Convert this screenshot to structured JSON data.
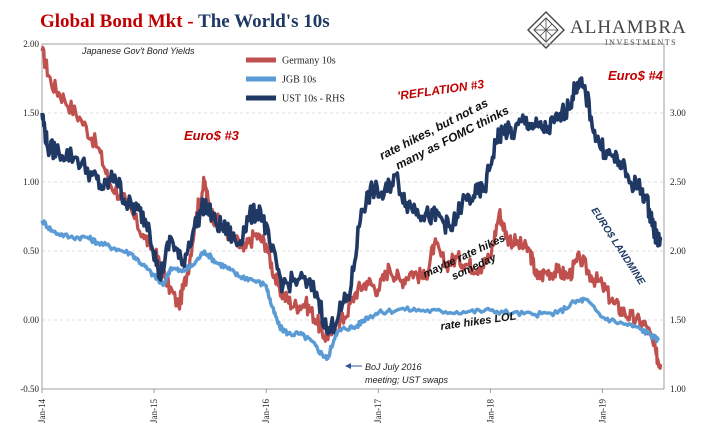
{
  "header": {
    "title_main": "Global Bond Mkt",
    "title_sep": " - ",
    "title_sub": "The World's 10s",
    "subtitle": "Japanese Gov't Bond Yields",
    "brand_name": "ALHAMBRA",
    "brand_sub": "INVESTMENTS"
  },
  "colors": {
    "germany": "#c0504d",
    "jgb": "#5b9bd5",
    "ust": "#1f3864",
    "title_red": "#c00000",
    "title_navy": "#1f3864",
    "annot_red": "#c00000",
    "annot_black": "#111111",
    "annot_navy": "#1f3864",
    "grid": "#bbbbbb"
  },
  "annotations": {
    "euro3": "Euro$ #3",
    "euro4": "Euro$ #4",
    "reflation": "'REFLATION #3",
    "hikes_fomc_1": "rate hikes, but not as",
    "hikes_fomc_2": "many as FOMC thinks",
    "maybe_1": "maybe rate hikes",
    "maybe_2": "someday",
    "lol": "rate hikes LOL",
    "landmine": "EURO$ LANDMINE",
    "boj_1": "BoJ July 2016",
    "boj_2": "meeting; UST swaps"
  },
  "chart_data": {
    "type": "line",
    "title": "Global Bond Mkt - The World's 10s",
    "subtitle": "Japanese Gov't Bond Yields",
    "x_ticks": [
      "Jan-14",
      "Jan-15",
      "Jan-16",
      "Jan-17",
      "Jan-18",
      "Jan-19"
    ],
    "xlim": [
      2014.0,
      2019.55
    ],
    "y_left": {
      "lim": [
        -0.5,
        2.0
      ],
      "ticks": [
        "-0.50",
        "0.00",
        "0.50",
        "1.00",
        "1.50",
        "2.00"
      ]
    },
    "y_right": {
      "lim": [
        1.0,
        3.5
      ],
      "ticks": [
        "1.00",
        "1.50",
        "2.00",
        "2.50",
        "3.00"
      ]
    },
    "grid": "horizontal",
    "legend_position": "top-left",
    "series": [
      {
        "name": "Germany 10s",
        "axis": "left",
        "points": [
          [
            2014.0,
            1.95
          ],
          [
            2014.08,
            1.72
          ],
          [
            2014.2,
            1.6
          ],
          [
            2014.35,
            1.45
          ],
          [
            2014.5,
            1.25
          ],
          [
            2014.6,
            1.0
          ],
          [
            2014.75,
            0.85
          ],
          [
            2014.9,
            0.62
          ],
          [
            2015.0,
            0.5
          ],
          [
            2015.1,
            0.3
          ],
          [
            2015.22,
            0.1
          ],
          [
            2015.3,
            0.35
          ],
          [
            2015.38,
            0.78
          ],
          [
            2015.45,
            1.0
          ],
          [
            2015.5,
            0.78
          ],
          [
            2015.6,
            0.68
          ],
          [
            2015.7,
            0.6
          ],
          [
            2015.8,
            0.5
          ],
          [
            2015.9,
            0.62
          ],
          [
            2016.0,
            0.55
          ],
          [
            2016.08,
            0.3
          ],
          [
            2016.15,
            0.18
          ],
          [
            2016.25,
            0.1
          ],
          [
            2016.35,
            0.12
          ],
          [
            2016.45,
            0.0
          ],
          [
            2016.52,
            -0.12
          ],
          [
            2016.6,
            -0.08
          ],
          [
            2016.7,
            0.02
          ],
          [
            2016.8,
            0.2
          ],
          [
            2016.9,
            0.28
          ],
          [
            2017.0,
            0.22
          ],
          [
            2017.1,
            0.38
          ],
          [
            2017.2,
            0.28
          ],
          [
            2017.3,
            0.35
          ],
          [
            2017.42,
            0.3
          ],
          [
            2017.5,
            0.55
          ],
          [
            2017.6,
            0.4
          ],
          [
            2017.7,
            0.45
          ],
          [
            2017.8,
            0.4
          ],
          [
            2017.9,
            0.38
          ],
          [
            2018.0,
            0.45
          ],
          [
            2018.08,
            0.78
          ],
          [
            2018.15,
            0.6
          ],
          [
            2018.25,
            0.55
          ],
          [
            2018.35,
            0.5
          ],
          [
            2018.42,
            0.3
          ],
          [
            2018.5,
            0.35
          ],
          [
            2018.6,
            0.35
          ],
          [
            2018.7,
            0.32
          ],
          [
            2018.8,
            0.45
          ],
          [
            2018.9,
            0.32
          ],
          [
            2019.0,
            0.25
          ],
          [
            2019.1,
            0.12
          ],
          [
            2019.2,
            0.05
          ],
          [
            2019.3,
            0.0
          ],
          [
            2019.4,
            -0.05
          ],
          [
            2019.48,
            -0.25
          ],
          [
            2019.52,
            -0.32
          ]
        ]
      },
      {
        "name": "JGB 10s",
        "axis": "left",
        "points": [
          [
            2014.0,
            0.72
          ],
          [
            2014.1,
            0.64
          ],
          [
            2014.25,
            0.6
          ],
          [
            2014.4,
            0.6
          ],
          [
            2014.5,
            0.56
          ],
          [
            2014.65,
            0.52
          ],
          [
            2014.8,
            0.48
          ],
          [
            2014.9,
            0.4
          ],
          [
            2015.0,
            0.32
          ],
          [
            2015.08,
            0.25
          ],
          [
            2015.15,
            0.38
          ],
          [
            2015.25,
            0.35
          ],
          [
            2015.35,
            0.4
          ],
          [
            2015.45,
            0.5
          ],
          [
            2015.55,
            0.42
          ],
          [
            2015.65,
            0.38
          ],
          [
            2015.75,
            0.32
          ],
          [
            2015.85,
            0.3
          ],
          [
            2016.0,
            0.25
          ],
          [
            2016.05,
            0.1
          ],
          [
            2016.12,
            -0.05
          ],
          [
            2016.2,
            -0.1
          ],
          [
            2016.3,
            -0.1
          ],
          [
            2016.4,
            -0.15
          ],
          [
            2016.5,
            -0.25
          ],
          [
            2016.55,
            -0.28
          ],
          [
            2016.62,
            -0.1
          ],
          [
            2016.7,
            -0.06
          ],
          [
            2016.8,
            -0.05
          ],
          [
            2016.9,
            0.02
          ],
          [
            2017.0,
            0.05
          ],
          [
            2017.2,
            0.08
          ],
          [
            2017.4,
            0.07
          ],
          [
            2017.6,
            0.06
          ],
          [
            2017.8,
            0.06
          ],
          [
            2018.0,
            0.07
          ],
          [
            2018.2,
            0.05
          ],
          [
            2018.4,
            0.04
          ],
          [
            2018.6,
            0.05
          ],
          [
            2018.75,
            0.13
          ],
          [
            2018.85,
            0.15
          ],
          [
            2019.0,
            0.02
          ],
          [
            2019.15,
            -0.02
          ],
          [
            2019.3,
            -0.05
          ],
          [
            2019.42,
            -0.1
          ],
          [
            2019.5,
            -0.15
          ]
        ]
      },
      {
        "name": "UST 10s - RHS",
        "axis": "right",
        "points": [
          [
            2014.0,
            3.0
          ],
          [
            2014.05,
            2.75
          ],
          [
            2014.15,
            2.72
          ],
          [
            2014.3,
            2.68
          ],
          [
            2014.45,
            2.55
          ],
          [
            2014.55,
            2.45
          ],
          [
            2014.65,
            2.55
          ],
          [
            2014.75,
            2.35
          ],
          [
            2014.85,
            2.3
          ],
          [
            2014.95,
            2.2
          ],
          [
            2015.05,
            1.8
          ],
          [
            2015.15,
            2.1
          ],
          [
            2015.25,
            1.9
          ],
          [
            2015.35,
            2.15
          ],
          [
            2015.45,
            2.35
          ],
          [
            2015.55,
            2.2
          ],
          [
            2015.65,
            2.15
          ],
          [
            2015.75,
            2.05
          ],
          [
            2015.85,
            2.25
          ],
          [
            2015.95,
            2.3
          ],
          [
            2016.05,
            2.0
          ],
          [
            2016.15,
            1.75
          ],
          [
            2016.3,
            1.8
          ],
          [
            2016.45,
            1.7
          ],
          [
            2016.55,
            1.4
          ],
          [
            2016.65,
            1.55
          ],
          [
            2016.75,
            1.7
          ],
          [
            2016.85,
            2.3
          ],
          [
            2016.95,
            2.45
          ],
          [
            2017.05,
            2.4
          ],
          [
            2017.15,
            2.55
          ],
          [
            2017.25,
            2.35
          ],
          [
            2017.35,
            2.3
          ],
          [
            2017.45,
            2.25
          ],
          [
            2017.55,
            2.25
          ],
          [
            2017.65,
            2.15
          ],
          [
            2017.75,
            2.35
          ],
          [
            2017.85,
            2.4
          ],
          [
            2017.95,
            2.45
          ],
          [
            2018.05,
            2.8
          ],
          [
            2018.12,
            2.88
          ],
          [
            2018.2,
            2.85
          ],
          [
            2018.3,
            2.95
          ],
          [
            2018.4,
            2.9
          ],
          [
            2018.5,
            2.88
          ],
          [
            2018.6,
            2.95
          ],
          [
            2018.7,
            3.05
          ],
          [
            2018.78,
            3.22
          ],
          [
            2018.85,
            3.15
          ],
          [
            2018.95,
            2.8
          ],
          [
            2019.05,
            2.7
          ],
          [
            2019.15,
            2.65
          ],
          [
            2019.25,
            2.5
          ],
          [
            2019.35,
            2.45
          ],
          [
            2019.42,
            2.3
          ],
          [
            2019.48,
            2.1
          ],
          [
            2019.52,
            2.08
          ]
        ]
      }
    ]
  }
}
